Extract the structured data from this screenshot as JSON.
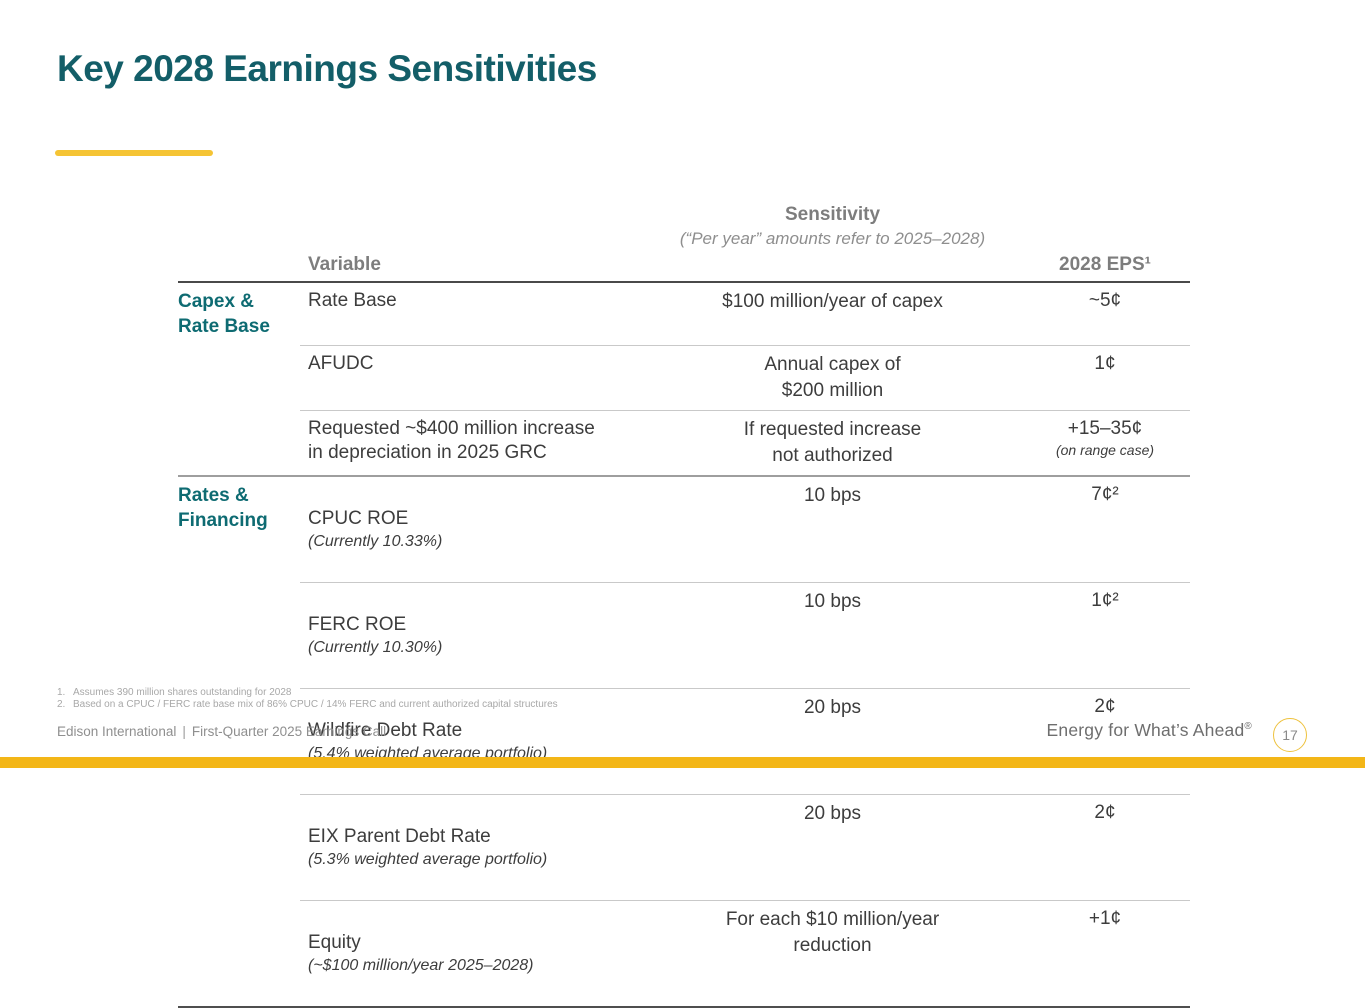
{
  "slide": {
    "title": "Key 2028 Earnings Sensitivities",
    "page_number": "17",
    "tagline": "Energy for What’s Ahead",
    "tagline_reg": "®",
    "footer_company": "Edison International",
    "footer_separator": "|",
    "footer_event": "First-Quarter 2025 Earnings Call"
  },
  "colors": {
    "title_teal": "#135e68",
    "group_teal": "#0e6b72",
    "accent_yellow": "#f5c434",
    "bottom_bar_yellow": "#f3b617",
    "header_gray": "#7d7d7d"
  },
  "table": {
    "headers": {
      "variable": "Variable",
      "sensitivity": "Sensitivity",
      "sensitivity_note": "(“Per year” amounts refer to 2025–2028)",
      "eps": "2028 EPS¹"
    },
    "rows": [
      {
        "group": "Capex &\nRate Base",
        "variable": "Rate Base",
        "sensitivity": "$100 million/year of capex",
        "eps": "~5¢"
      },
      {
        "variable": "AFUDC",
        "sensitivity": "Annual capex of\n$200 million",
        "eps": "1¢"
      },
      {
        "variable": "Requested ~$400 million increase\nin depreciation in 2025 GRC",
        "sensitivity": "If requested increase\nnot authorized",
        "eps": "+15–35¢",
        "eps_note": "(on range case)"
      },
      {
        "group": "Rates &\nFinancing",
        "variable": "CPUC ROE",
        "variable_note": "(Currently 10.33%)",
        "sensitivity": "10 bps",
        "eps": "7¢²"
      },
      {
        "variable": "FERC ROE",
        "variable_note": "(Currently 10.30%)",
        "sensitivity": "10 bps",
        "eps": "1¢²"
      },
      {
        "variable": "Wildfire Debt Rate",
        "variable_note": "(5.4% weighted average portfolio)",
        "sensitivity": "20 bps",
        "eps": "2¢"
      },
      {
        "variable": "EIX Parent Debt Rate",
        "variable_note": "(5.3% weighted average portfolio)",
        "sensitivity": "20 bps",
        "eps": "2¢"
      },
      {
        "variable": "Equity",
        "variable_note": "(~$100 million/year 2025–2028)",
        "sensitivity": "For each $10 million/year\nreduction",
        "eps": "+1¢"
      }
    ]
  },
  "footnotes": [
    {
      "num": "1.",
      "text": "Assumes 390 million shares outstanding for 2028"
    },
    {
      "num": "2.",
      "text": "Based on a CPUC / FERC rate base mix of 86% CPUC / 14% FERC and current authorized capital structures"
    }
  ]
}
